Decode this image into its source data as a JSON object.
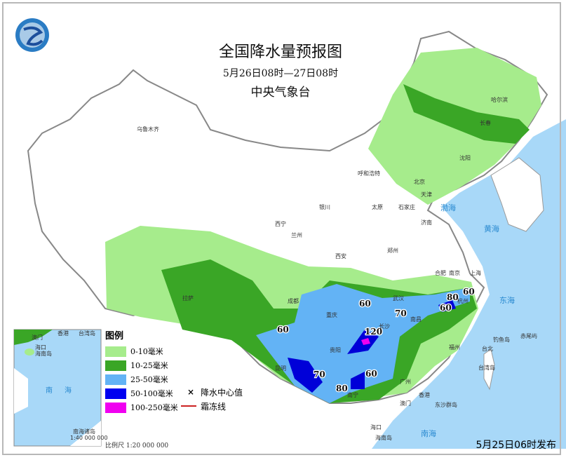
{
  "header": {
    "title": "全国降水量预报图",
    "period": "5月26日08时—27日08时",
    "organization": "中央气象台"
  },
  "issued": "5月25日06时发布",
  "legend": {
    "title": "图例",
    "items": [
      {
        "label": "0-10毫米",
        "color": "#a6ec8c"
      },
      {
        "label": "10-25毫米",
        "color": "#3aa626"
      },
      {
        "label": "25-50毫米",
        "color": "#63b3f5"
      },
      {
        "label": "50-100毫米",
        "color": "#0000f0"
      },
      {
        "label": "100-250毫米",
        "color": "#f000f0"
      }
    ],
    "center_symbol": "×",
    "center_label": "降水中心值",
    "frost_label": "霜冻线",
    "frost_color": "#cc2222"
  },
  "scale": "比例尺  1:20 000 000",
  "inset": {
    "labels": [
      "香港",
      "台湾岛",
      "澳门",
      "海口",
      "海南岛",
      "南",
      "海",
      "南海诸岛",
      "1:40 000 000"
    ]
  },
  "cities": [
    "乌鲁木齐",
    "哈尔滨",
    "长春",
    "沈阳",
    "呼和浩特",
    "北京",
    "天津",
    "银川",
    "太原",
    "石家庄",
    "济南",
    "西宁",
    "兰州",
    "西安",
    "郑州",
    "合肥",
    "南京",
    "上海",
    "杭州",
    "武汉",
    "成都",
    "重庆",
    "长沙",
    "南昌",
    "拉萨",
    "贵阳",
    "昆明",
    "南宁",
    "广州",
    "香港",
    "澳门",
    "福州",
    "台北",
    "台湾岛",
    "钓鱼岛",
    "赤尾屿",
    "东沙群岛",
    "海口",
    "海南岛"
  ],
  "seas": [
    "渤海",
    "黄海",
    "东海",
    "南海"
  ],
  "rain_center_values": [
    "60",
    "60",
    "70",
    "80",
    "60",
    "120",
    "60",
    "70",
    "80",
    "60"
  ],
  "colors": {
    "ocean": "#a8d8f8",
    "land": "#ffffff",
    "border": "#888888"
  }
}
